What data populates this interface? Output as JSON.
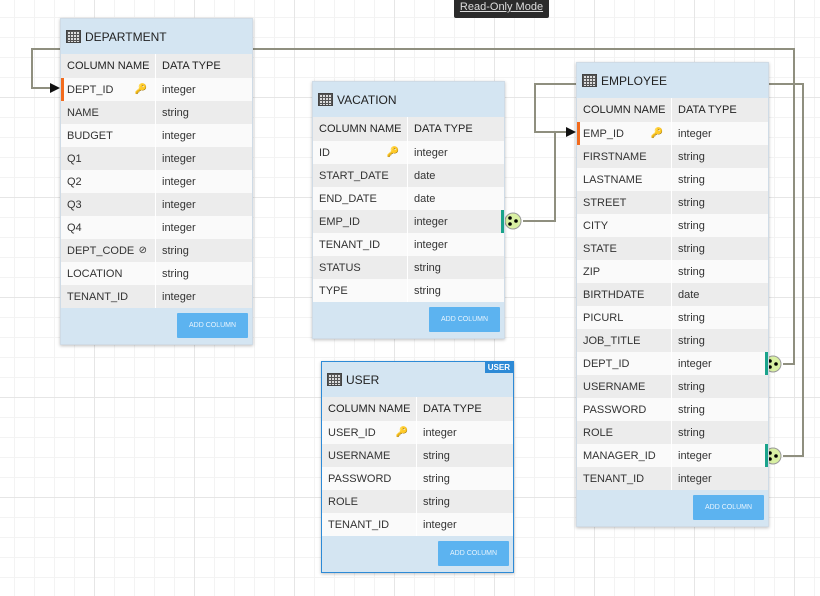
{
  "mode_label": "Read-Only Mode",
  "headers": {
    "column": "COLUMN NAME",
    "type": "DATA TYPE"
  },
  "add_column": "ADD COLUMN",
  "tables": {
    "department": {
      "name": "DEPARTMENT",
      "rows": [
        [
          "DEPT_ID",
          "integer"
        ],
        [
          "NAME",
          "string"
        ],
        [
          "BUDGET",
          "integer"
        ],
        [
          "Q1",
          "integer"
        ],
        [
          "Q2",
          "integer"
        ],
        [
          "Q3",
          "integer"
        ],
        [
          "Q4",
          "integer"
        ],
        [
          "DEPT_CODE",
          "string"
        ],
        [
          "LOCATION",
          "string"
        ],
        [
          "TENANT_ID",
          "integer"
        ]
      ]
    },
    "vacation": {
      "name": "VACATION",
      "rows": [
        [
          "ID",
          "integer"
        ],
        [
          "START_DATE",
          "date"
        ],
        [
          "END_DATE",
          "date"
        ],
        [
          "EMP_ID",
          "integer"
        ],
        [
          "TENANT_ID",
          "integer"
        ],
        [
          "STATUS",
          "string"
        ],
        [
          "TYPE",
          "string"
        ]
      ]
    },
    "employee": {
      "name": "EMPLOYEE",
      "rows": [
        [
          "EMP_ID",
          "integer"
        ],
        [
          "FIRSTNAME",
          "string"
        ],
        [
          "LASTNAME",
          "string"
        ],
        [
          "STREET",
          "string"
        ],
        [
          "CITY",
          "string"
        ],
        [
          "STATE",
          "string"
        ],
        [
          "ZIP",
          "string"
        ],
        [
          "BIRTHDATE",
          "date"
        ],
        [
          "PICURL",
          "string"
        ],
        [
          "JOB_TITLE",
          "string"
        ],
        [
          "DEPT_ID",
          "integer"
        ],
        [
          "USERNAME",
          "string"
        ],
        [
          "PASSWORD",
          "string"
        ],
        [
          "ROLE",
          "string"
        ],
        [
          "MANAGER_ID",
          "integer"
        ],
        [
          "TENANT_ID",
          "integer"
        ]
      ]
    },
    "user": {
      "name": "USER",
      "tag": "USER",
      "rows": [
        [
          "USER_ID",
          "integer"
        ],
        [
          "USERNAME",
          "string"
        ],
        [
          "PASSWORD",
          "string"
        ],
        [
          "ROLE",
          "string"
        ],
        [
          "TENANT_ID",
          "integer"
        ]
      ]
    }
  }
}
